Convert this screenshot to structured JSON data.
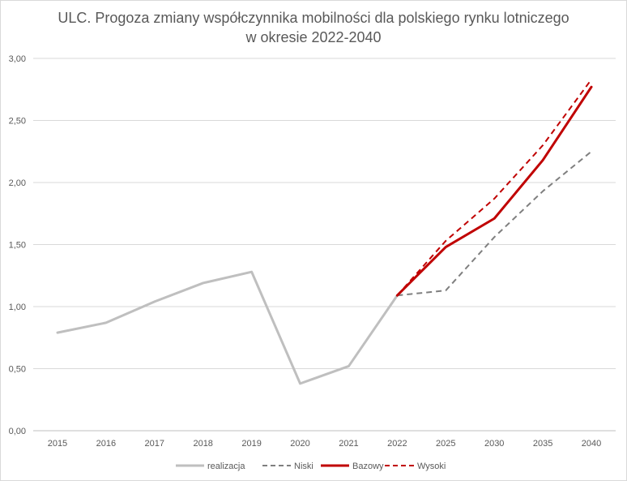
{
  "chart_data": {
    "type": "line",
    "title_line1": "ULC. Progoza zmiany współczynnika mobilności dla polskiego rynku lotniczego",
    "title_line2": "w okresie 2022-2040",
    "categories": [
      "2015",
      "2016",
      "2017",
      "2018",
      "2019",
      "2020",
      "2021",
      "2022",
      "2025",
      "2030",
      "2035",
      "2040"
    ],
    "y_ticks": [
      "0,00",
      "0,50",
      "1,00",
      "1,50",
      "2,00",
      "2,50",
      "3,00"
    ],
    "ylim": [
      0,
      3
    ],
    "grid": true,
    "legend_position": "bottom",
    "series": [
      {
        "name": "realizacja",
        "color": "#bfbfbf",
        "dash": "solid",
        "values": [
          0.79,
          0.87,
          1.04,
          1.19,
          1.28,
          0.38,
          0.52,
          1.09,
          null,
          null,
          null,
          null
        ]
      },
      {
        "name": "Niski",
        "color": "#7f7f7f",
        "dash": "dashed",
        "values": [
          null,
          null,
          null,
          null,
          null,
          null,
          null,
          1.09,
          1.13,
          1.56,
          1.93,
          2.25
        ]
      },
      {
        "name": "Bazowy",
        "color": "#c00000",
        "dash": "solid",
        "values": [
          null,
          null,
          null,
          null,
          null,
          null,
          null,
          1.09,
          1.48,
          1.71,
          2.18,
          2.77
        ]
      },
      {
        "name": "Wysoki",
        "color": "#c00000",
        "dash": "dashed",
        "values": [
          null,
          null,
          null,
          null,
          null,
          null,
          null,
          1.09,
          1.53,
          1.87,
          2.3,
          2.83
        ]
      }
    ]
  }
}
